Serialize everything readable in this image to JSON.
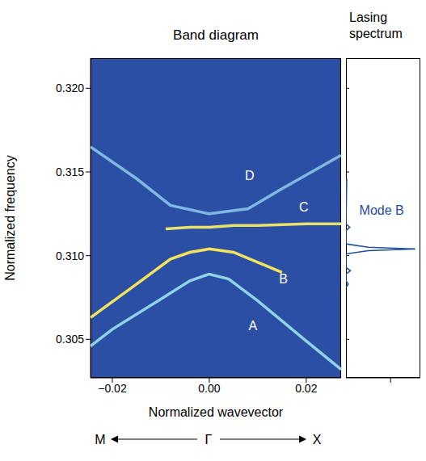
{
  "chart_data": [
    {
      "type": "line",
      "title": "Band diagram",
      "x_label": "Normalized wavevector",
      "y_label": "Normalized frequency",
      "xlim": [
        -0.0245,
        0.0272
      ],
      "ylim": [
        0.3027,
        0.3218
      ],
      "xticks": [
        {
          "value": -0.02,
          "label": "−0.02"
        },
        {
          "value": 0,
          "label": "0.00"
        },
        {
          "value": 0.02,
          "label": "0.02"
        }
      ],
      "yticks": [
        0.305,
        {
          "value": 0.31,
          "label": "0.310"
        },
        0.315,
        {
          "value": 0.32,
          "label": "0.320"
        }
      ],
      "grid": false,
      "series": [
        {
          "color": "#8fd3e6",
          "x": [
            -0.0245,
            -0.02,
            -0.01,
            -0.004,
            0,
            0.004,
            0.01,
            0.02,
            0.0272
          ],
          "values": [
            0.3046,
            0.3056,
            0.3074,
            0.3085,
            0.3089,
            0.3086,
            0.3073,
            0.3049,
            0.3032
          ]
        },
        {
          "color": "#f2e35a",
          "x": [
            -0.0245,
            -0.015,
            -0.008,
            -0.004,
            0,
            0.005,
            0.01,
            0.015
          ],
          "values": [
            0.3063,
            0.3083,
            0.3098,
            0.3102,
            0.3104,
            0.3102,
            0.3096,
            0.309
          ]
        },
        {
          "color": "#e8e26a",
          "x": [
            -0.009,
            -0.004,
            0,
            0.005,
            0.01,
            0.02,
            0.0272
          ],
          "values": [
            0.3116,
            0.3117,
            0.3117,
            0.3118,
            0.3118,
            0.3119,
            0.3119
          ]
        },
        {
          "color": "#7fb8e0",
          "x": [
            -0.0245,
            -0.015,
            -0.008,
            0,
            0.008,
            0.015,
            0.0272
          ],
          "values": [
            0.3165,
            0.3146,
            0.313,
            0.3125,
            0.3128,
            0.314,
            0.316
          ]
        }
      ],
      "annotations": [
        {
          "text": "A",
          "x": 0.009,
          "y": 0.3058
        },
        {
          "text": "B",
          "x": 0.0153,
          "y": 0.3086
        },
        {
          "text": "C",
          "x": 0.0195,
          "y": 0.3129
        },
        {
          "text": "D",
          "x": 0.0083,
          "y": 0.3148
        }
      ],
      "direction_labels": [
        "M",
        "Γ",
        "X"
      ]
    },
    {
      "type": "line",
      "title": "Lasing spectrum",
      "xlim": [
        0,
        1
      ],
      "ylim": [
        0.3027,
        0.3218
      ],
      "xticks": [
        0.6
      ],
      "yticks": [
        0.305,
        0.31,
        0.315,
        0.32
      ],
      "tick_labels": false,
      "grid": false,
      "series": [
        {
          "color": "#1f4e9c",
          "x": [
            0,
            0.03,
            0,
            0,
            0.06,
            0,
            0,
            0.3,
            0.93,
            0.3,
            0,
            0,
            0.05,
            0,
            0.01
          ],
          "values": [
            0.3081,
            0.3083,
            0.3085,
            0.3089,
            0.3091,
            0.3093,
            0.3101,
            0.3103,
            0.3104,
            0.3105,
            0.3107,
            0.3115,
            0.3117,
            0.3119,
            0.3146
          ]
        }
      ],
      "annotations": [
        {
          "text": "Mode B",
          "x": 0.18,
          "y": 0.3127,
          "color": "#1f4e9c"
        }
      ]
    }
  ]
}
